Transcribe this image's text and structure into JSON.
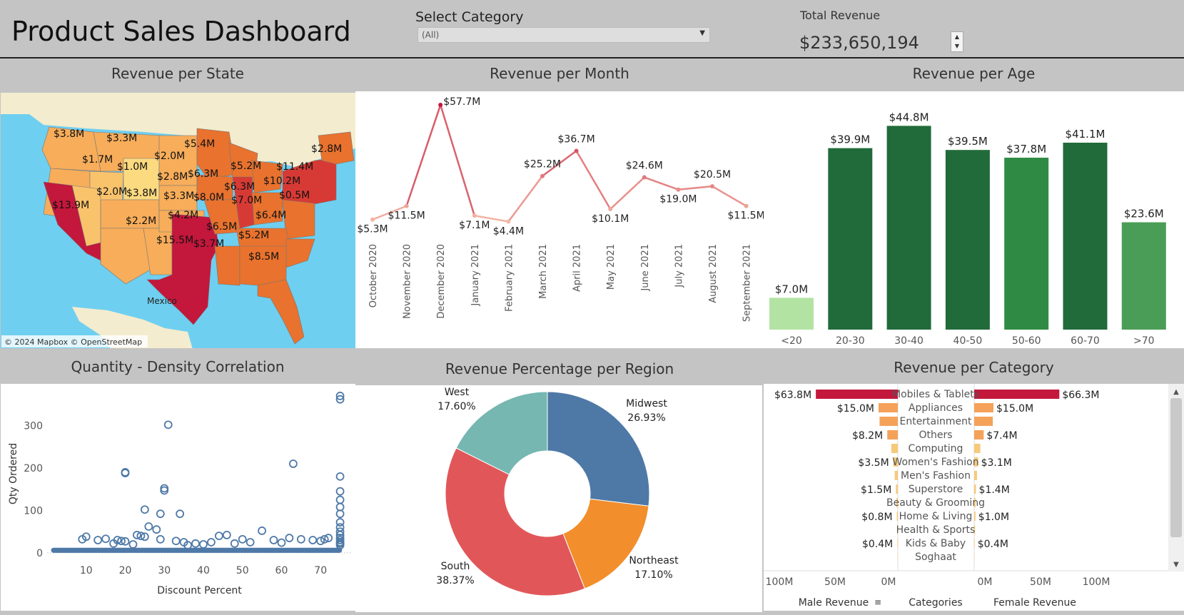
{
  "header": {
    "title": "Product Sales Dashboard",
    "category_filter": {
      "label": "Select Category",
      "value": "(All)"
    },
    "total_revenue": {
      "label": "Total Revenue",
      "value": "$233,650,194"
    }
  },
  "panels": {
    "state": {
      "title": "Revenue per State",
      "attribution": "© 2024 Mapbox © OpenStreetMap",
      "map_label": "Mexico"
    },
    "month": {
      "title": "Revenue per Month"
    },
    "age": {
      "title": "Revenue per Age"
    },
    "scatter": {
      "title": "Quantity - Density Correlation"
    },
    "region": {
      "title": "Revenue Percentage per Region"
    },
    "category": {
      "title": "Revenue per Category"
    }
  },
  "colors": {
    "map_water": "#6fcff0",
    "map_land": "#f3eccf",
    "line_high": "#c3173c",
    "line_low": "#f4b8a6",
    "age_dark": "#216b3a",
    "age_mid": "#2f8b43",
    "age_light": "#b3e3a3",
    "scatter": "#4e79a7",
    "region_midwest": "#4e79a7",
    "region_northeast": "#f28e2b",
    "region_south": "#e15759",
    "region_west": "#76b7b2",
    "cat_high": "#c3173c",
    "cat_mid": "#f4a25a",
    "cat_low": "#f7c97a"
  },
  "chart_data": [
    {
      "id": "state",
      "type": "map",
      "title": "Revenue per State",
      "labels": [
        "$3.8M",
        "$3.3M",
        "$1.7M",
        "$1.0M",
        "$2.0M",
        "$5.4M",
        "$2.8M",
        "$13.9M",
        "$2.0M",
        "$3.8M",
        "$2.8M",
        "$6.3M",
        "$5.2M",
        "$11.4M",
        "$10.2M",
        "$6.3M",
        "$3.3M",
        "$8.0M",
        "$7.0M",
        "$0.5M",
        "$4.2M",
        "$2.2M",
        "$6.4M",
        "$6.5M",
        "$15.5M",
        "$3.7M",
        "$5.2M",
        "$8.5M"
      ]
    },
    {
      "id": "month",
      "type": "line",
      "title": "Revenue per Month",
      "x": [
        "October 2020",
        "November 2020",
        "December 2020",
        "January 2021",
        "February 2021",
        "March 2021",
        "April 2021",
        "May 2021",
        "June 2021",
        "July 2021",
        "August 2021",
        "September 2021"
      ],
      "values": [
        5.3,
        11.5,
        57.7,
        7.1,
        4.4,
        25.2,
        36.7,
        10.1,
        24.6,
        19.0,
        20.5,
        11.5
      ],
      "value_labels": [
        "$5.3M",
        "$11.5M",
        "$57.7M",
        "$7.1M",
        "$4.4M",
        "$25.2M",
        "$36.7M",
        "$10.1M",
        "$24.6M",
        "$19.0M",
        "$20.5M",
        "$11.5M"
      ],
      "ylim": [
        0,
        60
      ]
    },
    {
      "id": "age",
      "type": "bar",
      "title": "Revenue per Age",
      "categories": [
        "<20",
        "20-30",
        "30-40",
        "40-50",
        "50-60",
        "60-70",
        ">70"
      ],
      "values": [
        7.0,
        39.9,
        44.8,
        39.5,
        37.8,
        41.1,
        23.6
      ],
      "value_labels": [
        "$7.0M",
        "$39.9M",
        "$44.8M",
        "$39.5M",
        "$37.8M",
        "$41.1M",
        "$23.6M"
      ],
      "ylim": [
        0,
        48
      ]
    },
    {
      "id": "scatter",
      "type": "scatter",
      "title": "Quantity - Density Correlation",
      "xlabel": "Discount Percent",
      "ylabel": "Qty Ordered",
      "xticks": [
        10,
        20,
        30,
        40,
        50,
        60,
        70
      ],
      "yticks": [
        0,
        100,
        200,
        300
      ],
      "xlim": [
        0,
        78
      ],
      "ylim": [
        -12,
        385
      ],
      "points": [
        [
          75,
          370
        ],
        [
          75,
          362
        ],
        [
          31,
          302
        ],
        [
          20,
          190
        ],
        [
          20,
          188
        ],
        [
          63,
          210
        ],
        [
          75,
          180
        ],
        [
          30,
          152
        ],
        [
          30,
          147
        ],
        [
          75,
          145
        ],
        [
          75,
          125
        ],
        [
          25,
          102
        ],
        [
          75,
          108
        ],
        [
          29,
          92
        ],
        [
          34,
          92
        ],
        [
          75,
          92
        ],
        [
          75,
          72
        ],
        [
          75,
          60
        ],
        [
          75,
          50
        ],
        [
          75,
          42
        ],
        [
          75,
          35
        ],
        [
          75,
          30
        ],
        [
          75,
          25
        ],
        [
          75,
          22
        ],
        [
          75,
          18
        ],
        [
          26,
          62
        ],
        [
          28,
          55
        ],
        [
          10,
          38
        ],
        [
          9,
          32
        ],
        [
          13,
          30
        ],
        [
          15,
          33
        ],
        [
          18,
          30
        ],
        [
          19,
          28
        ],
        [
          20,
          27
        ],
        [
          23,
          42
        ],
        [
          24,
          40
        ],
        [
          25,
          38
        ],
        [
          29,
          32
        ],
        [
          33,
          28
        ],
        [
          35,
          25
        ],
        [
          38,
          22
        ],
        [
          42,
          25
        ],
        [
          44,
          40
        ],
        [
          46,
          42
        ],
        [
          50,
          32
        ],
        [
          55,
          52
        ],
        [
          58,
          30
        ],
        [
          62,
          35
        ],
        [
          65,
          32
        ],
        [
          68,
          30
        ],
        [
          70,
          28
        ],
        [
          71,
          32
        ],
        [
          72,
          35
        ],
        [
          48,
          22
        ],
        [
          52,
          25
        ],
        [
          40,
          20
        ],
        [
          36,
          18
        ],
        [
          17,
          22
        ],
        [
          22,
          20
        ],
        [
          60,
          24
        ]
      ]
    },
    {
      "id": "region",
      "type": "pie",
      "title": "Revenue Percentage per Region",
      "labels": [
        "Midwest",
        "Northeast",
        "South",
        "West"
      ],
      "values": [
        26.93,
        17.1,
        38.37,
        17.6
      ],
      "value_labels": [
        "26.93%",
        "17.10%",
        "38.37%",
        "17.60%"
      ]
    },
    {
      "id": "category",
      "type": "bar",
      "title": "Revenue per Category",
      "categories": [
        "Mobiles & Tablets",
        "Appliances",
        "Entertainment",
        "Others",
        "Computing",
        "Women's Fashion",
        "Men's Fashion",
        "Superstore",
        "Beauty & Grooming",
        "Home & Living",
        "Health & Sports",
        "Kids & Baby",
        "Soghaat"
      ],
      "series": [
        {
          "name": "Male Revenue",
          "values": [
            63.8,
            15.0,
            14.2,
            8.2,
            5.0,
            3.5,
            2.4,
            1.5,
            1.2,
            0.8,
            0.6,
            0.4,
            0.2
          ],
          "value_labels": [
            "$63.8M",
            "$15.0M",
            "",
            "$8.2M",
            "",
            "$3.5M",
            "",
            "$1.5M",
            "",
            "$0.8M",
            "",
            "$0.4M",
            ""
          ]
        },
        {
          "name": "Female Revenue",
          "values": [
            66.3,
            15.0,
            14.5,
            7.4,
            4.8,
            3.1,
            2.2,
            1.4,
            1.1,
            1.0,
            0.7,
            0.4,
            0.2
          ],
          "value_labels": [
            "$66.3M",
            "$15.0M",
            "",
            "$7.4M",
            "",
            "$3.1M",
            "",
            "$1.4M",
            "",
            "$1.0M",
            "",
            "$0.4M",
            ""
          ]
        }
      ],
      "axis_ticks_male": [
        "100M",
        "50M",
        "0M"
      ],
      "axis_ticks_female": [
        "0M",
        "50M",
        "100M"
      ],
      "xlim": [
        0,
        100
      ],
      "header_categories": "Categories"
    }
  ]
}
